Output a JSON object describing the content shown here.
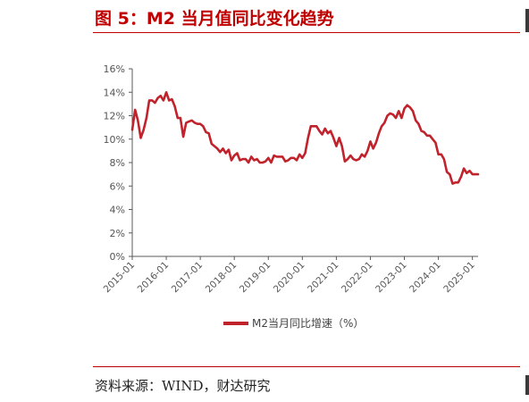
{
  "title": "图 5：M2 当月值同比变化趋势",
  "source": "资料来源：WIND，财达研究",
  "colors": {
    "accent": "#c00000",
    "series": "#c0232c",
    "axis": "#595959"
  },
  "chart_data": {
    "type": "line",
    "title": "图 5：M2 当月值同比变化趋势",
    "xlabel": "",
    "ylabel": "",
    "y_unit": "%",
    "ylim": [
      0,
      16
    ],
    "y_ticks": [
      "0%",
      "2%",
      "4%",
      "6%",
      "8%",
      "10%",
      "12%",
      "14%",
      "16%"
    ],
    "x_ticks": [
      "2015-01",
      "2016-01",
      "2017-01",
      "2018-01",
      "2019-01",
      "2020-01",
      "2021-01",
      "2022-01",
      "2023-01",
      "2024-01",
      "2025-01"
    ],
    "grid": false,
    "legend": "bottom-center",
    "series": [
      {
        "name": "M2当月同比增速（%）",
        "x": [
          "2015-01",
          "2015-02",
          "2015-03",
          "2015-04",
          "2015-05",
          "2015-06",
          "2015-07",
          "2015-08",
          "2015-09",
          "2015-10",
          "2015-11",
          "2015-12",
          "2016-01",
          "2016-02",
          "2016-03",
          "2016-04",
          "2016-05",
          "2016-06",
          "2016-07",
          "2016-08",
          "2016-09",
          "2016-10",
          "2016-11",
          "2016-12",
          "2017-01",
          "2017-02",
          "2017-03",
          "2017-04",
          "2017-05",
          "2017-06",
          "2017-07",
          "2017-08",
          "2017-09",
          "2017-10",
          "2017-11",
          "2017-12",
          "2018-01",
          "2018-02",
          "2018-03",
          "2018-04",
          "2018-05",
          "2018-06",
          "2018-07",
          "2018-08",
          "2018-09",
          "2018-10",
          "2018-11",
          "2018-12",
          "2019-01",
          "2019-02",
          "2019-03",
          "2019-04",
          "2019-05",
          "2019-06",
          "2019-07",
          "2019-08",
          "2019-09",
          "2019-10",
          "2019-11",
          "2019-12",
          "2020-01",
          "2020-02",
          "2020-03",
          "2020-04",
          "2020-05",
          "2020-06",
          "2020-07",
          "2020-08",
          "2020-09",
          "2020-10",
          "2020-11",
          "2020-12",
          "2021-01",
          "2021-02",
          "2021-03",
          "2021-04",
          "2021-05",
          "2021-06",
          "2021-07",
          "2021-08",
          "2021-09",
          "2021-10",
          "2021-11",
          "2021-12",
          "2022-01",
          "2022-02",
          "2022-03",
          "2022-04",
          "2022-05",
          "2022-06",
          "2022-07",
          "2022-08",
          "2022-09",
          "2022-10",
          "2022-11",
          "2022-12",
          "2023-01",
          "2023-02",
          "2023-03",
          "2023-04",
          "2023-05",
          "2023-06",
          "2023-07",
          "2023-08",
          "2023-09",
          "2023-10",
          "2023-11",
          "2023-12",
          "2024-01",
          "2024-02",
          "2024-03",
          "2024-04",
          "2024-05",
          "2024-06",
          "2024-07",
          "2024-08",
          "2024-09",
          "2024-10",
          "2024-11",
          "2024-12",
          "2025-01",
          "2025-02",
          "2025-03"
        ],
        "values": [
          10.8,
          12.5,
          11.6,
          10.1,
          10.8,
          11.8,
          13.3,
          13.3,
          13.1,
          13.5,
          13.7,
          13.3,
          14.0,
          13.3,
          13.4,
          12.8,
          11.8,
          11.8,
          10.2,
          11.4,
          11.5,
          11.6,
          11.4,
          11.3,
          11.3,
          11.1,
          10.6,
          10.5,
          9.6,
          9.4,
          9.2,
          8.9,
          9.2,
          8.8,
          9.1,
          8.2,
          8.6,
          8.8,
          8.2,
          8.3,
          8.3,
          8.0,
          8.5,
          8.2,
          8.3,
          8.0,
          8.0,
          8.1,
          8.4,
          8.0,
          8.6,
          8.5,
          8.5,
          8.5,
          8.1,
          8.2,
          8.4,
          8.4,
          8.2,
          8.7,
          8.4,
          8.8,
          10.1,
          11.1,
          11.1,
          11.1,
          10.7,
          10.4,
          10.9,
          10.5,
          10.7,
          10.1,
          9.4,
          10.1,
          9.4,
          8.1,
          8.3,
          8.6,
          8.3,
          8.2,
          8.3,
          8.7,
          8.5,
          9.0,
          9.8,
          9.2,
          9.7,
          10.5,
          11.1,
          11.4,
          12.0,
          12.2,
          12.1,
          11.8,
          12.4,
          11.8,
          12.6,
          12.9,
          12.7,
          12.4,
          11.6,
          11.3,
          10.7,
          10.6,
          10.3,
          10.3,
          10.0,
          9.7,
          8.7,
          8.7,
          8.3,
          7.2,
          7.0,
          6.2,
          6.3,
          6.3,
          6.8,
          7.5,
          7.1,
          7.3,
          7.0,
          7.0,
          7.0
        ]
      }
    ]
  }
}
